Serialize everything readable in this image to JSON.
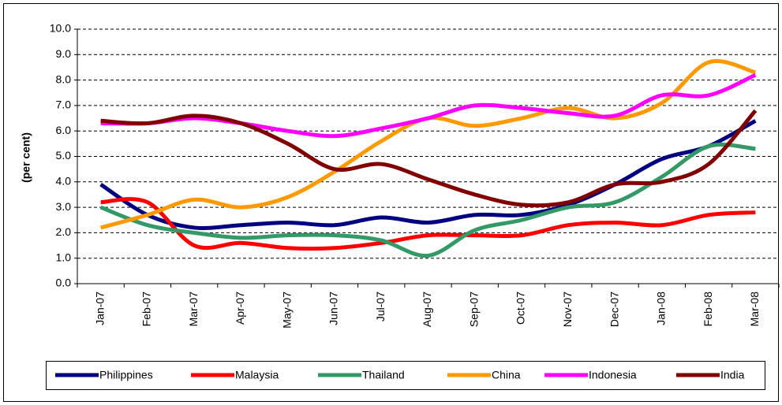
{
  "chart_data": {
    "type": "line",
    "y_label": "(per cent)",
    "categories": [
      "Jan-07",
      "Feb-07",
      "Mar-07",
      "Apr-07",
      "May-07",
      "Jun-07",
      "Jul-07",
      "Aug-07",
      "Sep-07",
      "Oct-07",
      "Nov-07",
      "Dec-07",
      "Jan-08",
      "Feb-08",
      "Mar-08"
    ],
    "series": [
      {
        "name": "Philippines",
        "color": "#000080",
        "values": [
          3.9,
          2.7,
          2.2,
          2.3,
          2.4,
          2.3,
          2.6,
          2.4,
          2.7,
          2.7,
          3.1,
          3.9,
          4.9,
          5.4,
          6.4
        ]
      },
      {
        "name": "Malaysia",
        "color": "#ff0000",
        "values": [
          3.2,
          3.2,
          1.5,
          1.6,
          1.4,
          1.4,
          1.6,
          1.9,
          1.9,
          1.9,
          2.3,
          2.4,
          2.3,
          2.7,
          2.8
        ]
      },
      {
        "name": "Thailand",
        "color": "#339966",
        "values": [
          3.0,
          2.3,
          2.0,
          1.8,
          1.9,
          1.9,
          1.7,
          1.1,
          2.1,
          2.5,
          3.0,
          3.2,
          4.2,
          5.4,
          5.3
        ]
      },
      {
        "name": "China",
        "color": "#ff9900",
        "values": [
          2.2,
          2.7,
          3.3,
          3.0,
          3.4,
          4.4,
          5.6,
          6.5,
          6.2,
          6.5,
          6.9,
          6.5,
          7.1,
          8.7,
          8.3
        ]
      },
      {
        "name": "Indonesia",
        "color": "#ff00ff",
        "values": [
          6.3,
          6.3,
          6.5,
          6.3,
          6.0,
          5.8,
          6.1,
          6.5,
          7.0,
          6.9,
          6.7,
          6.6,
          7.4,
          7.4,
          8.2
        ]
      },
      {
        "name": "India",
        "color": "#800000",
        "values": [
          6.4,
          6.3,
          6.6,
          6.3,
          5.5,
          4.5,
          4.7,
          4.1,
          3.5,
          3.1,
          3.2,
          3.9,
          4.0,
          4.7,
          6.8
        ]
      }
    ],
    "ylim": [
      0,
      10
    ],
    "yticks": [
      {
        "value": 0,
        "label": "0.0"
      },
      {
        "value": 1,
        "label": "1.0"
      },
      {
        "value": 2,
        "label": "2.0"
      },
      {
        "value": 3,
        "label": "3.0"
      },
      {
        "value": 4,
        "label": "4.0"
      },
      {
        "value": 5,
        "label": "5.0"
      },
      {
        "value": 6,
        "label": "6.0"
      },
      {
        "value": 7,
        "label": "7.0"
      },
      {
        "value": 8,
        "label": "8.0"
      },
      {
        "value": 9,
        "label": "9.0"
      },
      {
        "value": 10,
        "label": "10.0"
      }
    ],
    "grid": true
  }
}
